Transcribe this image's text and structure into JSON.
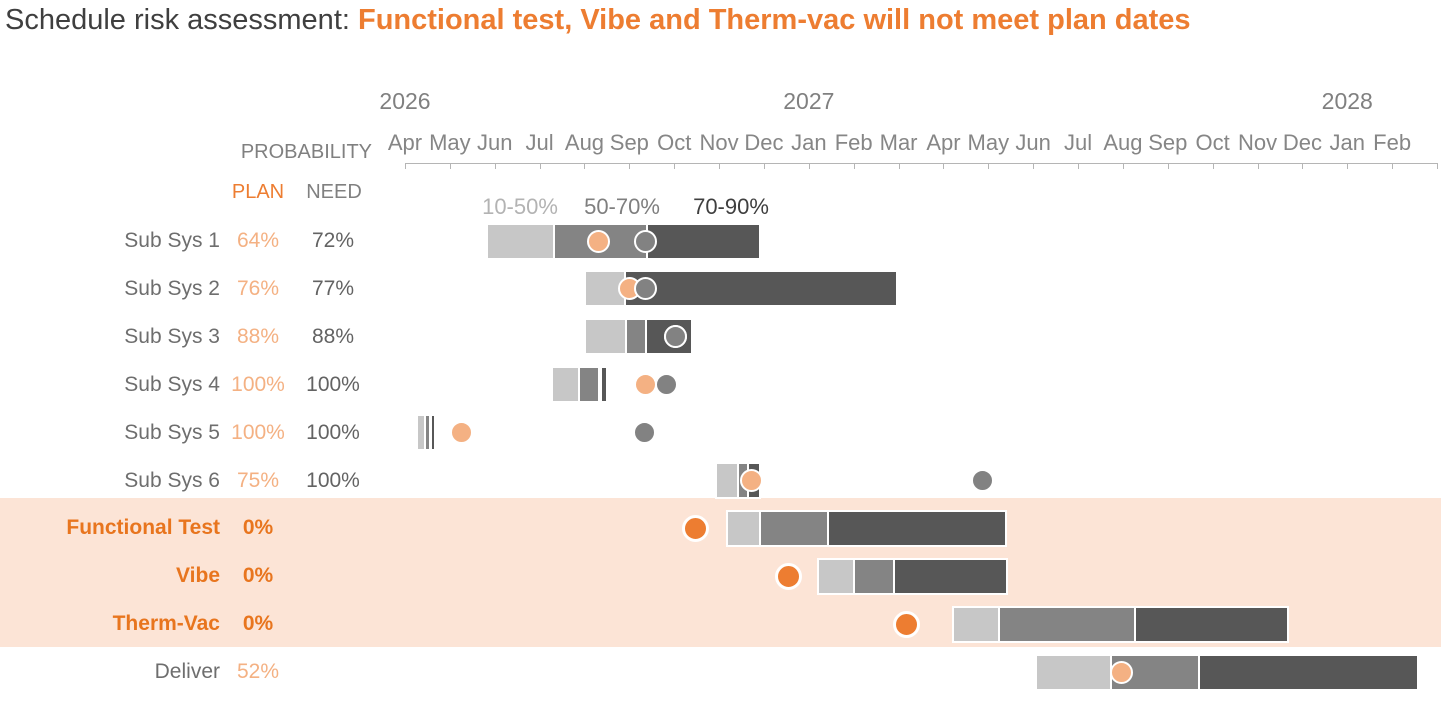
{
  "title": {
    "prefix": "Schedule risk assessment: ",
    "highlight": "Functional test, Vibe and Therm-vac will not meet plan dates"
  },
  "columns": {
    "probability": "PROBABILITY",
    "plan": "PLAN",
    "need": "NEED"
  },
  "legend": [
    {
      "band": "light",
      "label": "10-50%"
    },
    {
      "band": "mid",
      "label": "50-70%"
    },
    {
      "band": "dark",
      "label": "70-90%"
    }
  ],
  "axis": {
    "years": [
      {
        "label": "2026",
        "month_index": 0
      },
      {
        "label": "2027",
        "month_index": 9
      },
      {
        "label": "2028",
        "month_index": 21
      }
    ],
    "months": [
      "Apr",
      "May",
      "Jun",
      "Jul",
      "Aug",
      "Sep",
      "Oct",
      "Nov",
      "Dec",
      "Jan",
      "Feb",
      "Mar",
      "Apr",
      "May",
      "Jun",
      "Jul",
      "Aug",
      "Sep",
      "Oct",
      "Nov",
      "Dec",
      "Jan",
      "Feb"
    ]
  },
  "colors": {
    "orange": "#ed7d31",
    "orange_light": "#f4b183",
    "highlight_bg": "#fce4d6",
    "seg_light": "#c7c7c7",
    "seg_mid": "#848484",
    "seg_dark": "#575757",
    "dot_need": "#828282",
    "legend_light": "#b3b3b3",
    "legend_mid": "#7f7f7f",
    "legend_dark": "#3f3f3f"
  },
  "chart_data": {
    "type": "gantt-risk",
    "time_origin": "2026-04",
    "unit": "months after Apr 1 2026",
    "probability_bands": [
      "10-50%",
      "50-70%",
      "70-90%"
    ],
    "rows": [
      {
        "label": "Sub Sys 1",
        "plan_pct": "64%",
        "need_pct": "72%",
        "highlight": false,
        "segments": [
          {
            "band": "light",
            "start": 1.85,
            "end": 3.3
          },
          {
            "band": "mid",
            "start": 3.3,
            "end": 5.37
          },
          {
            "band": "dark",
            "start": 5.37,
            "end": 7.89
          }
        ],
        "plan": 4.32,
        "need": 5.37
      },
      {
        "label": "Sub Sys 2",
        "plan_pct": "76%",
        "need_pct": "77%",
        "highlight": false,
        "segments": [
          {
            "band": "light",
            "start": 4.03,
            "end": 4.89
          },
          {
            "band": "dark",
            "start": 4.89,
            "end": 10.94
          }
        ],
        "plan": 5.01,
        "need": 5.37
      },
      {
        "label": "Sub Sys 3",
        "plan_pct": "88%",
        "need_pct": "88%",
        "highlight": false,
        "segments": [
          {
            "band": "light",
            "start": 4.03,
            "end": 4.9
          },
          {
            "band": "mid",
            "start": 4.9,
            "end": 5.35
          },
          {
            "band": "dark",
            "start": 5.35,
            "end": 6.37
          }
        ],
        "plan": 6.03,
        "need": 6.03
      },
      {
        "label": "Sub Sys 4",
        "plan_pct": "100%",
        "need_pct": "100%",
        "highlight": false,
        "segments": [
          {
            "band": "light",
            "start": 3.3,
            "end": 3.86
          },
          {
            "band": "mid",
            "start": 3.86,
            "end": 4.31
          },
          {
            "band": "dark",
            "start": 4.38,
            "end": 4.47
          }
        ],
        "plan": 5.35,
        "need": 5.82
      },
      {
        "label": "Sub Sys 5",
        "plan_pct": "100%",
        "need_pct": "100%",
        "highlight": false,
        "segments": [
          {
            "band": "light",
            "start": 0.3,
            "end": 0.42
          },
          {
            "band": "mid",
            "start": 0.46,
            "end": 0.53
          },
          {
            "band": "dark",
            "start": 0.55,
            "end": 0.64
          }
        ],
        "plan": 1.27,
        "need": 5.33
      },
      {
        "label": "Sub Sys 6",
        "plan_pct": "75%",
        "need_pct": "100%",
        "highlight": false,
        "segments": [
          {
            "band": "light",
            "start": 6.95,
            "end": 7.41
          },
          {
            "band": "mid",
            "start": 7.41,
            "end": 7.62
          },
          {
            "band": "dark",
            "start": 7.62,
            "end": 7.9
          }
        ],
        "plan": 7.73,
        "need": 12.88
      },
      {
        "label": "Functional Test",
        "plan_pct": "0%",
        "need_pct": "",
        "highlight": true,
        "segments": [
          {
            "band": "light",
            "start": 7.2,
            "end": 7.89
          },
          {
            "band": "mid",
            "start": 7.89,
            "end": 9.4
          },
          {
            "band": "dark",
            "start": 9.4,
            "end": 13.37
          }
        ],
        "plan": 6.48,
        "need": null
      },
      {
        "label": "Vibe",
        "plan_pct": "0%",
        "need_pct": "",
        "highlight": true,
        "segments": [
          {
            "band": "light",
            "start": 9.23,
            "end": 9.98
          },
          {
            "band": "mid",
            "start": 9.98,
            "end": 10.88
          },
          {
            "band": "dark",
            "start": 10.88,
            "end": 13.39
          }
        ],
        "plan": 8.54,
        "need": null
      },
      {
        "label": "Therm-Vac",
        "plan_pct": "0%",
        "need_pct": "",
        "highlight": true,
        "segments": [
          {
            "band": "light",
            "start": 12.24,
            "end": 13.22
          },
          {
            "band": "mid",
            "start": 13.22,
            "end": 16.25
          },
          {
            "band": "dark",
            "start": 16.25,
            "end": 19.65
          }
        ],
        "plan": 11.18,
        "need": null
      },
      {
        "label": "Deliver",
        "plan_pct": "52%",
        "need_pct": "",
        "highlight": false,
        "segments": [
          {
            "band": "light",
            "start": 14.08,
            "end": 15.71
          },
          {
            "band": "mid",
            "start": 15.71,
            "end": 17.67
          },
          {
            "band": "dark",
            "start": 17.67,
            "end": 22.55
          }
        ],
        "plan": 15.97,
        "need": null
      }
    ]
  }
}
